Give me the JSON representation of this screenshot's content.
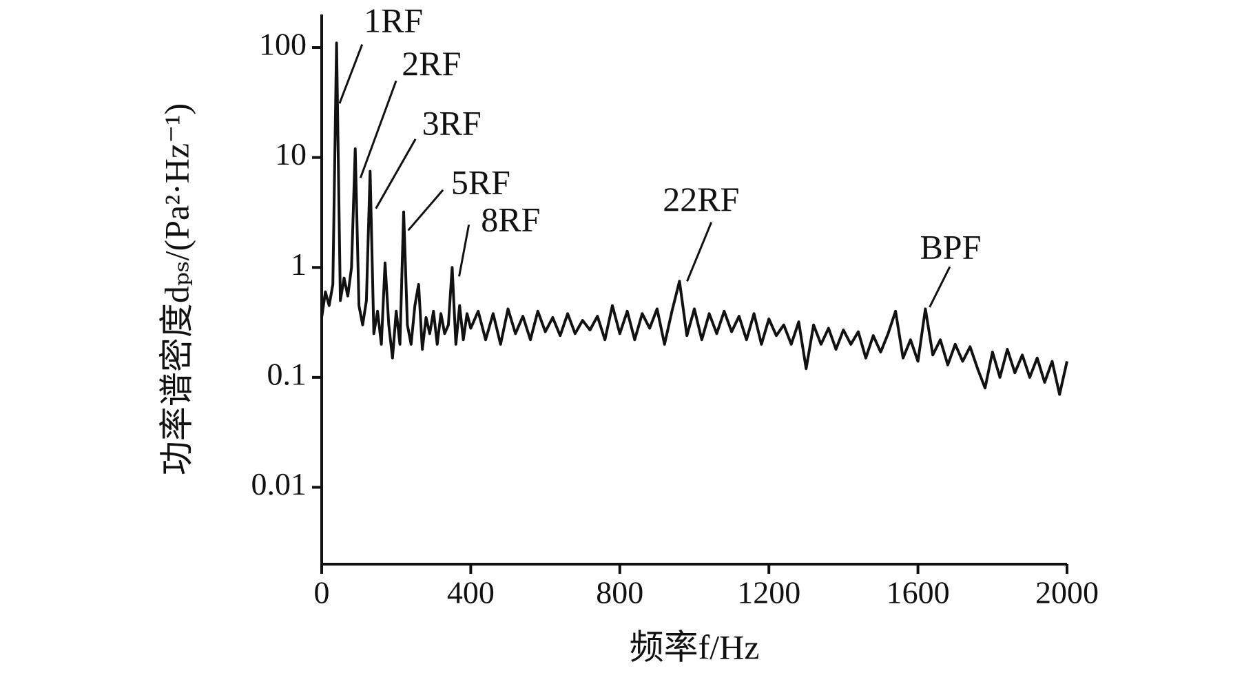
{
  "chart_data": {
    "type": "line",
    "x_label": "频率f/Hz",
    "y_label": "功率谱密度dₚₛ/(Pa²·Hz⁻¹)",
    "log_y": true,
    "xlim": [
      0,
      2000
    ],
    "xticks": [
      0,
      400,
      800,
      1200,
      1600,
      2000
    ],
    "ylim": [
      0.002,
      200
    ],
    "yticks": [
      0.01,
      0.1,
      1,
      10,
      100
    ],
    "annotations": [
      "1RF",
      "2RF",
      "3RF",
      "5RF",
      "8RF",
      "22RF",
      "BPF"
    ],
    "series": [
      {
        "color": "#111111",
        "x": [
          0,
          10,
          20,
          30,
          40,
          50,
          60,
          70,
          80,
          90,
          100,
          110,
          120,
          130,
          140,
          150,
          160,
          170,
          180,
          190,
          200,
          210,
          220,
          230,
          240,
          250,
          260,
          270,
          280,
          290,
          300,
          310,
          320,
          330,
          340,
          350,
          360,
          370,
          380,
          390,
          400,
          420,
          440,
          460,
          480,
          500,
          520,
          540,
          560,
          580,
          600,
          620,
          640,
          660,
          680,
          700,
          720,
          740,
          760,
          780,
          800,
          820,
          840,
          860,
          880,
          900,
          920,
          940,
          960,
          980,
          1000,
          1020,
          1040,
          1060,
          1080,
          1100,
          1120,
          1140,
          1160,
          1180,
          1200,
          1220,
          1240,
          1260,
          1280,
          1300,
          1320,
          1340,
          1360,
          1380,
          1400,
          1420,
          1440,
          1460,
          1480,
          1500,
          1520,
          1540,
          1560,
          1580,
          1600,
          1620,
          1640,
          1660,
          1680,
          1700,
          1720,
          1740,
          1760,
          1780,
          1800,
          1820,
          1840,
          1860,
          1880,
          1900,
          1920,
          1940,
          1960,
          1980,
          2000
        ],
        "values": [
          0.35,
          0.6,
          0.45,
          0.7,
          110,
          0.5,
          0.8,
          0.55,
          1.0,
          12,
          0.45,
          0.3,
          0.5,
          7.5,
          0.25,
          0.4,
          0.2,
          1.1,
          0.3,
          0.15,
          0.4,
          0.2,
          3.2,
          0.3,
          0.2,
          0.45,
          0.7,
          0.18,
          0.35,
          0.25,
          0.4,
          0.2,
          0.38,
          0.25,
          0.3,
          1.0,
          0.2,
          0.45,
          0.22,
          0.38,
          0.28,
          0.4,
          0.22,
          0.38,
          0.2,
          0.42,
          0.25,
          0.36,
          0.22,
          0.4,
          0.26,
          0.35,
          0.24,
          0.38,
          0.25,
          0.33,
          0.27,
          0.36,
          0.22,
          0.45,
          0.25,
          0.4,
          0.22,
          0.38,
          0.28,
          0.42,
          0.2,
          0.4,
          0.75,
          0.24,
          0.42,
          0.22,
          0.38,
          0.25,
          0.4,
          0.26,
          0.36,
          0.22,
          0.38,
          0.2,
          0.34,
          0.24,
          0.3,
          0.2,
          0.32,
          0.12,
          0.3,
          0.2,
          0.28,
          0.18,
          0.27,
          0.2,
          0.26,
          0.15,
          0.24,
          0.17,
          0.25,
          0.4,
          0.15,
          0.22,
          0.14,
          0.42,
          0.16,
          0.22,
          0.13,
          0.2,
          0.14,
          0.19,
          0.12,
          0.08,
          0.17,
          0.1,
          0.18,
          0.11,
          0.16,
          0.1,
          0.15,
          0.09,
          0.14,
          0.07,
          0.14
        ]
      }
    ]
  }
}
